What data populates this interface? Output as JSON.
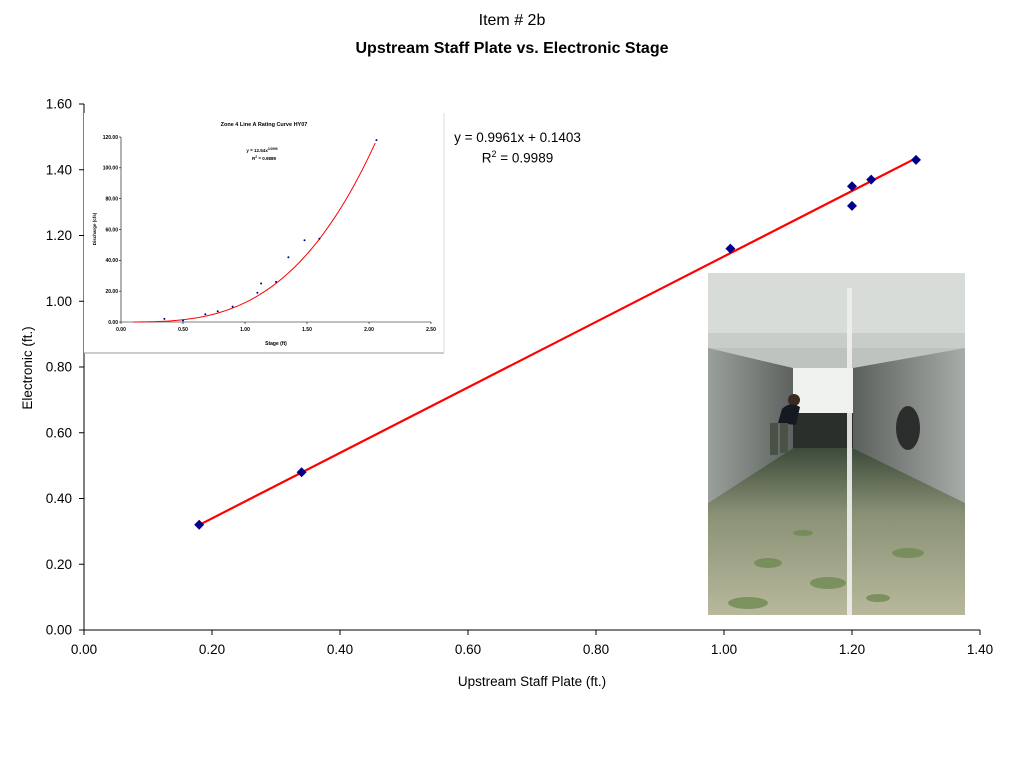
{
  "header": {
    "item": "Item # 2b",
    "title": "Upstream Staff Plate vs. Electronic Stage"
  },
  "chart_data": [
    {
      "type": "scatter",
      "title": "Upstream Staff Plate vs. Electronic Stage",
      "xlabel": "Upstream Staff Plate (ft.)",
      "ylabel": "Electronic (ft.)",
      "xlim": [
        0,
        1.4
      ],
      "ylim": [
        0,
        1.6
      ],
      "x_ticks": [
        "0.00",
        "0.20",
        "0.40",
        "0.60",
        "0.80",
        "1.00",
        "1.20",
        "1.40"
      ],
      "y_ticks": [
        "0.00",
        "0.20",
        "0.40",
        "0.60",
        "0.80",
        "1.00",
        "1.20",
        "1.40",
        "1.60"
      ],
      "grid": false,
      "series": [
        {
          "x": [
            0.18,
            0.34,
            1.01,
            1.2,
            1.2,
            1.23,
            1.3
          ],
          "y": [
            0.32,
            0.48,
            1.16,
            1.35,
            1.29,
            1.37,
            1.43
          ],
          "marker": "diamond",
          "color": "#00008b"
        }
      ],
      "trendline": {
        "type": "linear",
        "slope": 0.9961,
        "intercept": 0.1403,
        "x_range": [
          0.18,
          1.3
        ],
        "color": "#ff0000",
        "equation": "y = 0.9961x + 0.1403",
        "r2_label": "R",
        "r2_sup": "2",
        "r2_value": " = 0.9989"
      }
    },
    {
      "type": "scatter",
      "title": "Zone 4 Line A Rating Curve HY07",
      "xlabel": "Stage (ft)",
      "ylabel": "Discharge (cfs)",
      "xlim": [
        0,
        2.5
      ],
      "ylim": [
        0,
        120
      ],
      "x_ticks": [
        "0.00",
        "0.50",
        "1.00",
        "1.50",
        "2.00",
        "2.50"
      ],
      "y_ticks": [
        "0.00",
        "20.00",
        "40.00",
        "60.00",
        "80.00",
        "100.00",
        "120.00"
      ],
      "grid": false,
      "series": [
        {
          "x": [
            0.35,
            0.5,
            0.68,
            0.78,
            0.9,
            1.1,
            1.13,
            1.25,
            1.35,
            1.48,
            1.6,
            2.06
          ],
          "y": [
            2,
            1,
            5,
            7,
            10,
            19,
            25,
            26,
            42,
            53,
            54,
            118
          ],
          "marker": "dot",
          "color": "#00008b"
        }
      ],
      "trendline": {
        "type": "power",
        "coefficient": 12.54,
        "exponent": 3.1,
        "x_range": [
          0.1,
          2.05
        ],
        "color": "#ff0000",
        "equation_base": "y = 12.54x",
        "equation_exp": "3.0999",
        "r2_label": "R",
        "r2_sup": "2",
        "r2_value": " = 0.9889"
      }
    }
  ],
  "photo": {
    "subject": "culvert-photo"
  }
}
